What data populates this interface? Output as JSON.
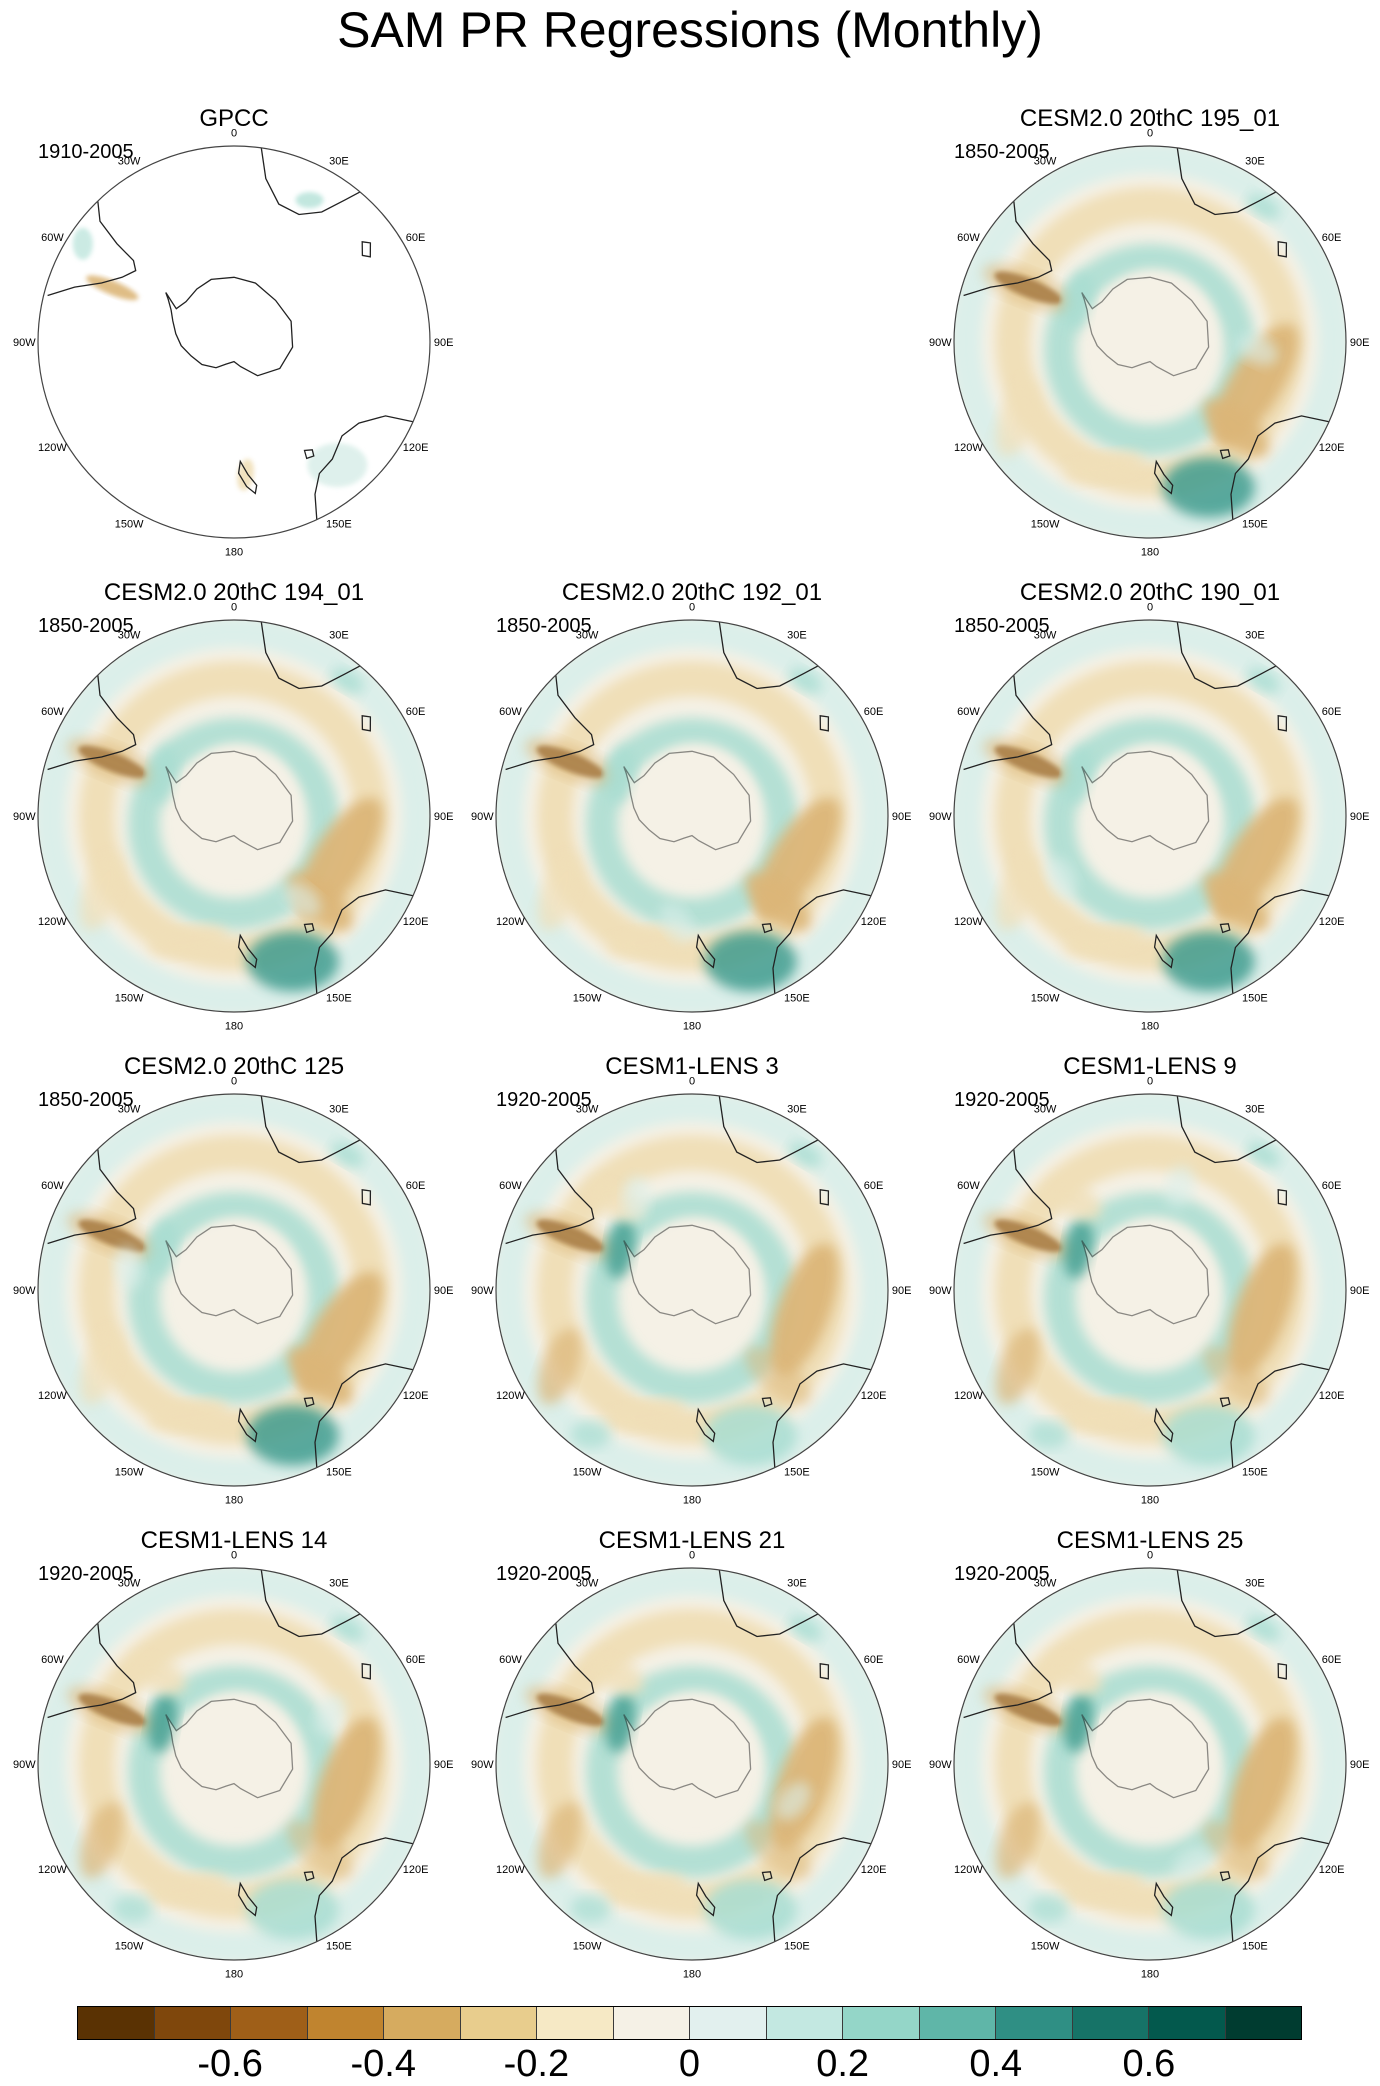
{
  "title": "SAM PR Regressions (Monthly)",
  "longitude_labels": [
    "0",
    "30E",
    "60E",
    "90E",
    "120E",
    "150E",
    "180",
    "150W",
    "120W",
    "90W",
    "60W",
    "30W"
  ],
  "panels": [
    {
      "title": "GPCC",
      "period": "1910-2005",
      "kind": "obs"
    },
    {
      "title": "",
      "period": "",
      "kind": "empty"
    },
    {
      "title": "CESM2.0 20thC 195_01",
      "period": "1850-2005",
      "kind": "cesm2"
    },
    {
      "title": "CESM2.0 20thC 194_01",
      "period": "1850-2005",
      "kind": "cesm2"
    },
    {
      "title": "CESM2.0 20thC 192_01",
      "period": "1850-2005",
      "kind": "cesm2"
    },
    {
      "title": "CESM2.0 20thC 190_01",
      "period": "1850-2005",
      "kind": "cesm2"
    },
    {
      "title": "CESM2.0 20thC 125",
      "period": "1850-2005",
      "kind": "cesm2"
    },
    {
      "title": "CESM1-LENS 3",
      "period": "1920-2005",
      "kind": "lens"
    },
    {
      "title": "CESM1-LENS 9",
      "period": "1920-2005",
      "kind": "lens"
    },
    {
      "title": "CESM1-LENS 14",
      "period": "1920-2005",
      "kind": "lens"
    },
    {
      "title": "CESM1-LENS 21",
      "period": "1920-2005",
      "kind": "lens"
    },
    {
      "title": "CESM1-LENS 25",
      "period": "1920-2005",
      "kind": "lens"
    }
  ],
  "colorbar": {
    "colors": [
      "#5a3203",
      "#7f470c",
      "#9f5f18",
      "#c0842f",
      "#d6ab5f",
      "#e8cd8d",
      "#f6e9c5",
      "#f5f1e6",
      "#e2f0ee",
      "#c3e8e1",
      "#94d6c8",
      "#5fb6a8",
      "#2f8f84",
      "#167367",
      "#03594d",
      "#003c30"
    ],
    "labels": [
      "-0.6",
      "-0.4",
      "-0.2",
      "0",
      "0.2",
      "0.4",
      "0.6"
    ],
    "label_values": [
      -0.6,
      -0.4,
      -0.2,
      0,
      0.2,
      0.4,
      0.6
    ],
    "range": [
      -0.8,
      0.8
    ]
  },
  "palette": {
    "ocean_neutral": "#f5f1e6",
    "light_teal": "#dbefea",
    "mid_teal": "#a8ddd1",
    "dark_teal": "#3f9c8f",
    "light_brown": "#f0dfb8",
    "mid_brown": "#dcb678",
    "dark_brown": "#6a3b0a",
    "coast": "#222222"
  }
}
